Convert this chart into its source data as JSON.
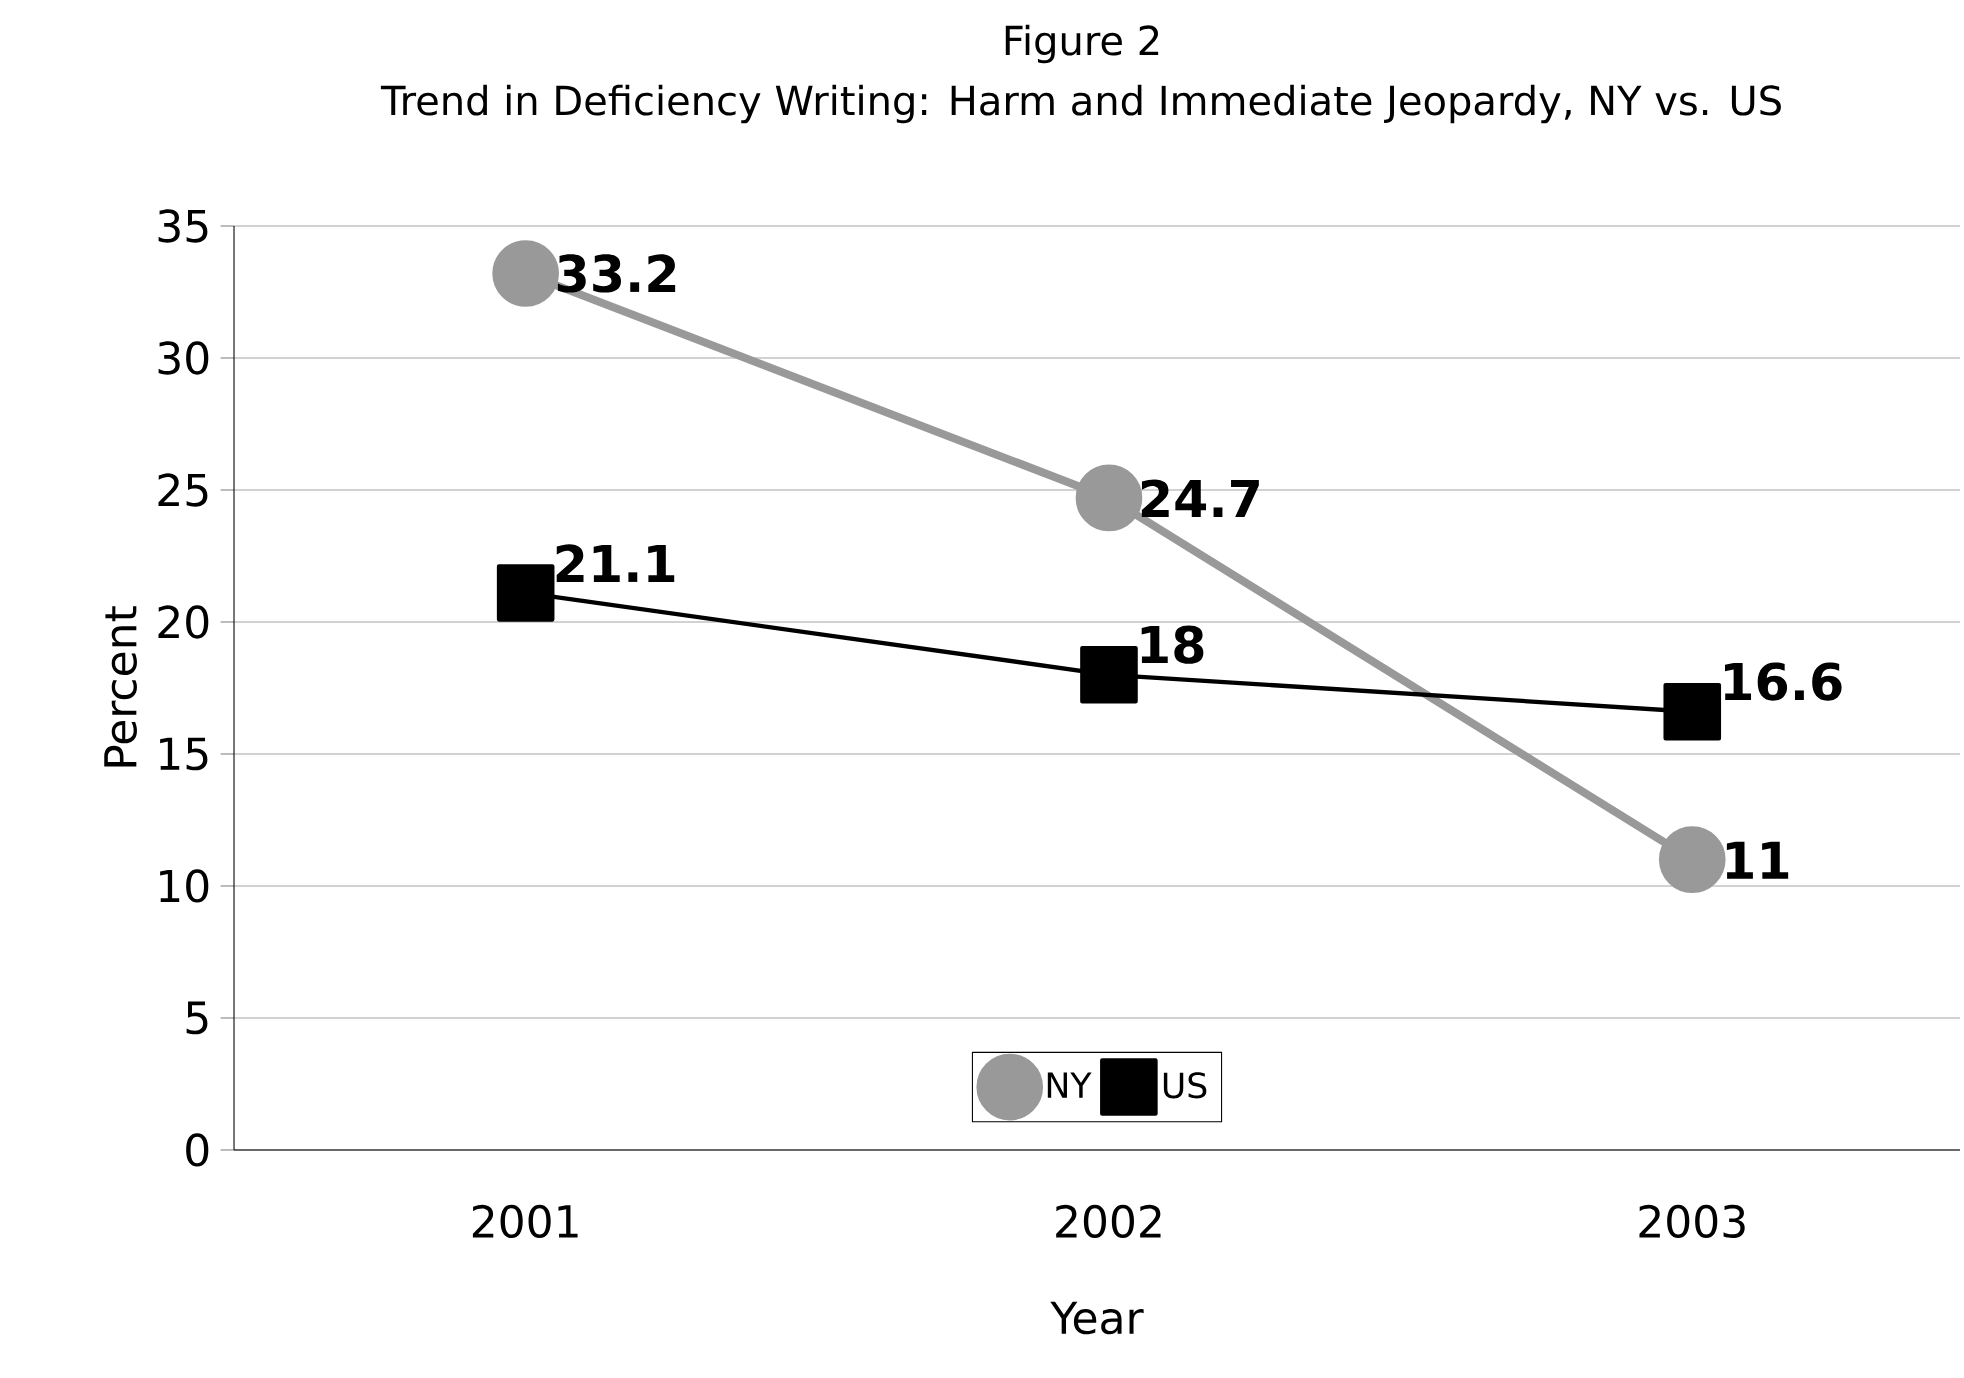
{
  "chart_data": {
    "type": "line",
    "title": "Figure 2",
    "subtitle": "Trend in Deficiency Writing: Harm and Immediate Jeopardy, NY vs. US",
    "xlabel": "Year",
    "ylabel": "Percent",
    "categories": [
      "2001",
      "2002",
      "2003"
    ],
    "series": [
      {
        "name": "NY",
        "color": "#999999",
        "values": [
          33.2,
          24.7,
          11
        ],
        "marker": "circle"
      },
      {
        "name": "US",
        "color": "#000000",
        "values": [
          21.1,
          18,
          16.6
        ],
        "marker": "square"
      }
    ],
    "ylim": [
      0,
      35
    ],
    "yticks": [
      0,
      5,
      10,
      15,
      20,
      25,
      30,
      35
    ],
    "grid": "y",
    "legend": "bottom",
    "data_labels": true,
    "line_style": "solid"
  }
}
